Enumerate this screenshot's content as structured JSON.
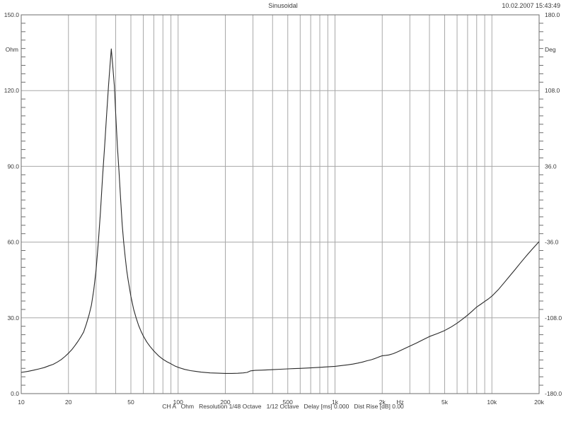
{
  "header": {
    "title": "Sinusoidal",
    "timestamp": "10.02.2007 15:43:49"
  },
  "footer": {
    "status": "CH A   Ohm   Resolution 1/48 Octave   1/12 Octave   Delay [ms] 0.000   Dist Rise [dB] 0.00"
  },
  "colors": {
    "background": "#ffffff",
    "grid": "#a8a8a8",
    "border": "#6e6e6e",
    "curve": "#2a2a2a",
    "text": "#3a3a3a"
  },
  "chart_data": {
    "type": "line",
    "title": "Sinusoidal",
    "legend": "none",
    "grid": "on",
    "x_axis": {
      "unit": "Hz",
      "scale": "log",
      "min": 10,
      "max": 20000,
      "ticks": [
        {
          "v": 10,
          "label": "10"
        },
        {
          "v": 20,
          "label": "20"
        },
        {
          "v": 50,
          "label": "50"
        },
        {
          "v": 100,
          "label": "100"
        },
        {
          "v": 200,
          "label": "200"
        },
        {
          "v": 500,
          "label": "500"
        },
        {
          "v": 1000,
          "label": "1k"
        },
        {
          "v": 2000,
          "label": "2k"
        },
        {
          "v": 5000,
          "label": "5k"
        },
        {
          "v": 10000,
          "label": "10k"
        },
        {
          "v": 20000,
          "label": "20k"
        }
      ],
      "grid_frequencies": [
        20,
        30,
        40,
        50,
        60,
        70,
        80,
        90,
        100,
        200,
        300,
        400,
        500,
        600,
        700,
        800,
        900,
        1000,
        2000,
        3000,
        4000,
        5000,
        6000,
        7000,
        8000,
        9000,
        10000
      ]
    },
    "y_left": {
      "unit": "Ohm",
      "min": 0,
      "max": 150,
      "ticks": [
        {
          "v": 150,
          "label": "150.0"
        },
        {
          "v": 120,
          "label": "120.0"
        },
        {
          "v": 90,
          "label": "90.0"
        },
        {
          "v": 60,
          "label": "60.0"
        },
        {
          "v": 30,
          "label": "30.0"
        },
        {
          "v": 0,
          "label": "0.0"
        }
      ],
      "grid_values": [
        120,
        90,
        60,
        30
      ]
    },
    "y_right": {
      "unit": "Deg",
      "min": -180,
      "max": 180,
      "ticks": [
        {
          "v": 180,
          "label": "180.0"
        },
        {
          "v": 108,
          "label": "108.0"
        },
        {
          "v": 36,
          "label": "36.0"
        },
        {
          "v": -36,
          "label": "-36.0"
        },
        {
          "v": -108,
          "label": "-108.0"
        },
        {
          "v": -180,
          "label": "-180.0"
        }
      ]
    },
    "series": [
      {
        "name": "impedance_magnitude_ohm",
        "axis": "left",
        "resonance_peak": {
          "frequency_hz": 37.5,
          "impedance_ohm": 136.5
        },
        "points": [
          [
            10,
            8.4
          ],
          [
            11,
            8.8
          ],
          [
            12,
            9.3
          ],
          [
            13,
            9.8
          ],
          [
            14,
            10.3
          ],
          [
            15,
            11.0
          ],
          [
            16,
            11.6
          ],
          [
            17,
            12.5
          ],
          [
            18,
            13.5
          ],
          [
            19,
            14.7
          ],
          [
            20,
            16.0
          ],
          [
            21,
            17.4
          ],
          [
            22,
            19.0
          ],
          [
            23,
            20.7
          ],
          [
            24,
            22.5
          ],
          [
            25,
            24.4
          ],
          [
            26,
            27.5
          ],
          [
            27,
            31.0
          ],
          [
            28,
            35.0
          ],
          [
            29,
            41.0
          ],
          [
            30,
            49.0
          ],
          [
            31,
            60.0
          ],
          [
            32,
            72.0
          ],
          [
            33,
            86.0
          ],
          [
            34,
            98.0
          ],
          [
            35,
            110.0
          ],
          [
            36,
            122.0
          ],
          [
            36.8,
            130.0
          ],
          [
            37.5,
            136.5
          ],
          [
            38.3,
            130.0
          ],
          [
            39.2,
            122.0
          ],
          [
            40,
            111.0
          ],
          [
            41,
            98.0
          ],
          [
            42,
            88.0
          ],
          [
            43,
            77.0
          ],
          [
            44,
            67.0
          ],
          [
            45,
            60.0
          ],
          [
            46,
            54.0
          ],
          [
            47,
            49.0
          ],
          [
            48,
            45.0
          ],
          [
            50,
            38.5
          ],
          [
            52,
            33.5
          ],
          [
            54,
            30.0
          ],
          [
            56,
            27.0
          ],
          [
            58,
            24.7
          ],
          [
            60,
            22.8
          ],
          [
            63,
            20.5
          ],
          [
            66,
            18.8
          ],
          [
            70,
            16.9
          ],
          [
            75,
            15.0
          ],
          [
            80,
            13.6
          ],
          [
            85,
            12.6
          ],
          [
            90,
            11.8
          ],
          [
            95,
            11.0
          ],
          [
            100,
            10.4
          ],
          [
            110,
            9.6
          ],
          [
            120,
            9.1
          ],
          [
            130,
            8.8
          ],
          [
            140,
            8.5
          ],
          [
            160,
            8.2
          ],
          [
            180,
            8.1
          ],
          [
            200,
            8.0
          ],
          [
            220,
            8.0
          ],
          [
            240,
            8.05
          ],
          [
            260,
            8.2
          ],
          [
            275,
            8.4
          ],
          [
            290,
            9.0
          ],
          [
            310,
            9.2
          ],
          [
            340,
            9.3
          ],
          [
            370,
            9.4
          ],
          [
            400,
            9.5
          ],
          [
            450,
            9.65
          ],
          [
            500,
            9.8
          ],
          [
            550,
            9.9
          ],
          [
            600,
            10.0
          ],
          [
            700,
            10.2
          ],
          [
            800,
            10.4
          ],
          [
            900,
            10.6
          ],
          [
            1000,
            10.8
          ],
          [
            1100,
            11.1
          ],
          [
            1200,
            11.4
          ],
          [
            1300,
            11.7
          ],
          [
            1400,
            12.1
          ],
          [
            1500,
            12.5
          ],
          [
            1600,
            13.0
          ],
          [
            1700,
            13.4
          ],
          [
            1800,
            13.9
          ],
          [
            1900,
            14.5
          ],
          [
            2000,
            15.0
          ],
          [
            2100,
            15.15
          ],
          [
            2200,
            15.3
          ],
          [
            2350,
            15.8
          ],
          [
            2500,
            16.5
          ],
          [
            2700,
            17.5
          ],
          [
            3000,
            18.8
          ],
          [
            3300,
            20.0
          ],
          [
            3600,
            21.2
          ],
          [
            4000,
            22.6
          ],
          [
            4500,
            23.8
          ],
          [
            5000,
            25.0
          ],
          [
            5500,
            26.4
          ],
          [
            6000,
            27.9
          ],
          [
            6500,
            29.5
          ],
          [
            7000,
            31.1
          ],
          [
            7500,
            32.7
          ],
          [
            8000,
            34.3
          ],
          [
            8500,
            35.4
          ],
          [
            9000,
            36.5
          ],
          [
            9500,
            37.5
          ],
          [
            10000,
            38.6
          ],
          [
            11000,
            41.2
          ],
          [
            12000,
            44.0
          ],
          [
            13000,
            46.6
          ],
          [
            14000,
            49.0
          ],
          [
            15000,
            51.3
          ],
          [
            16000,
            53.4
          ],
          [
            17000,
            55.3
          ],
          [
            18000,
            57.1
          ],
          [
            19000,
            58.7
          ],
          [
            20000,
            60.2
          ]
        ]
      }
    ]
  }
}
